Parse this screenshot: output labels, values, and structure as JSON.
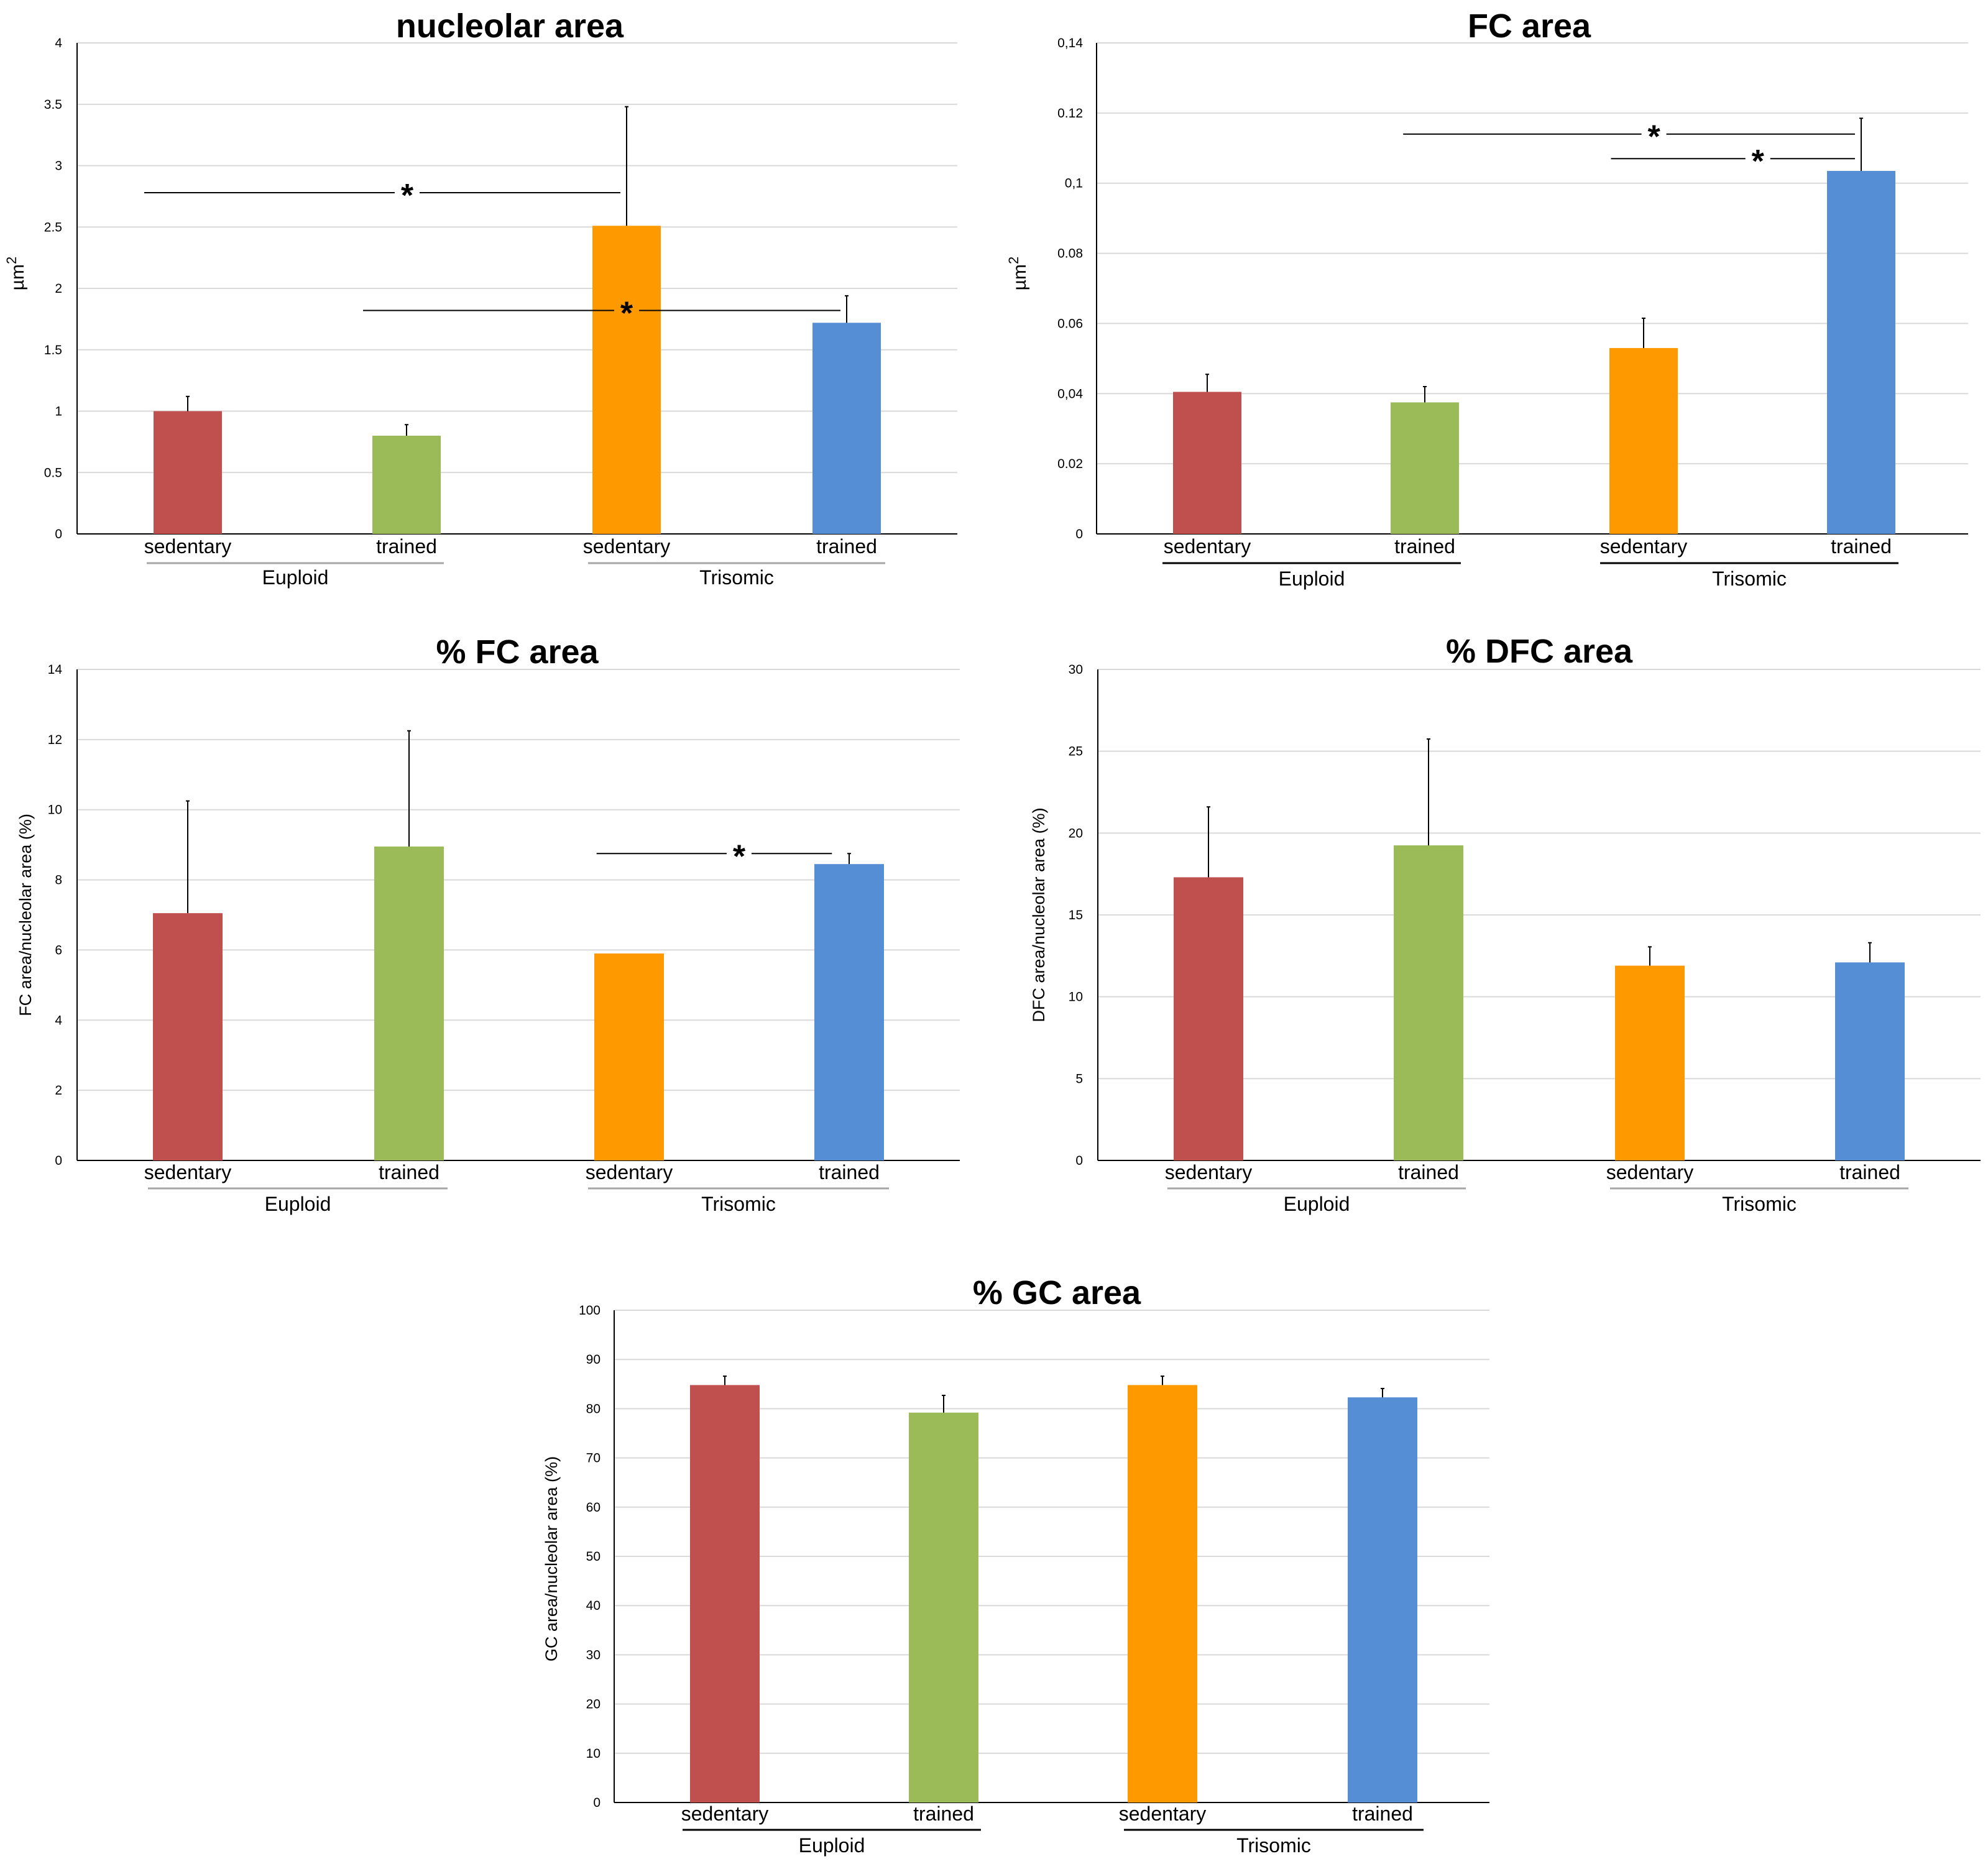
{
  "colors": {
    "sedentary_euploid": "#C0504D",
    "trained_euploid": "#9BBB59",
    "sedentary_trisomic": "#FF9900",
    "trained_trisomic": "#558ED5",
    "grid": "#D9D9D9",
    "axis": "#000000",
    "group_underline_gray": "#A6A6A6"
  },
  "chart_data": [
    {
      "id": "nucleolar",
      "type": "bar",
      "title": "nucleolar area",
      "ylabel": "µm",
      "ylabel_sup": "2",
      "ylim": [
        0,
        4
      ],
      "yticks": [
        0,
        0.5,
        1,
        1.5,
        2,
        2.5,
        3,
        3.5,
        4
      ],
      "ytick_labels": [
        "0",
        "0.5",
        "1",
        "1.5",
        "2",
        "2.5",
        "3",
        "3.5",
        "4"
      ],
      "categories": [
        "sedentary",
        "trained",
        "sedentary",
        "trained"
      ],
      "groups": [
        "Euploid",
        "Trisomic"
      ],
      "values": [
        1.0,
        0.8,
        2.51,
        1.72
      ],
      "errors": [
        0.12,
        0.09,
        0.97,
        0.22
      ],
      "significance": [
        {
          "from": 0,
          "to": 2,
          "y": 2.78,
          "label": "*"
        },
        {
          "from": 1,
          "to": 3,
          "y": 1.82,
          "label": "*"
        }
      ]
    },
    {
      "id": "fc",
      "type": "bar",
      "title": "FC area",
      "ylabel": "µm",
      "ylabel_sup": "2",
      "ylim": [
        0,
        0.14
      ],
      "yticks": [
        0,
        0.02,
        0.04,
        0.06,
        0.08,
        0.1,
        0.12,
        0.14
      ],
      "ytick_labels": [
        "0",
        "0.02",
        "0,04",
        "0.06",
        "0.08",
        "0,1",
        "0.12",
        "0,14"
      ],
      "categories": [
        "sedentary",
        "trained",
        "sedentary",
        "trained"
      ],
      "groups": [
        "Euploid",
        "Trisomic"
      ],
      "values": [
        0.0405,
        0.0375,
        0.053,
        0.1035
      ],
      "errors": [
        0.005,
        0.0045,
        0.0085,
        0.015
      ],
      "significance": [
        {
          "from": 1.1,
          "to": 3,
          "y": 0.114,
          "label": "*"
        },
        {
          "from": 2.05,
          "to": 3,
          "y": 0.107,
          "label": "*"
        }
      ]
    },
    {
      "id": "pct_fc",
      "type": "bar",
      "title": "% FC area",
      "ylabel": "FC area/nucleolar area (%)",
      "ylim": [
        0,
        14
      ],
      "yticks": [
        0,
        2,
        4,
        6,
        8,
        10,
        12,
        14
      ],
      "ytick_labels": [
        "0",
        "2",
        "4",
        "6",
        "8",
        "10",
        "12",
        "14"
      ],
      "categories": [
        "sedentary",
        "trained",
        "sedentary",
        "trained"
      ],
      "groups": [
        "Euploid",
        "Trisomic"
      ],
      "values": [
        7.05,
        8.95,
        5.9,
        8.45
      ],
      "errors": [
        3.2,
        3.3,
        0.0,
        0.3
      ],
      "significance": [
        {
          "from": 2.05,
          "to": 2.95,
          "y": 8.75,
          "label": "*"
        }
      ]
    },
    {
      "id": "pct_dfc",
      "type": "bar",
      "title": "% DFC area",
      "ylabel": "DFC area/nucleolar area (%)",
      "ylim": [
        0,
        30
      ],
      "yticks": [
        0,
        5,
        10,
        15,
        20,
        25,
        30
      ],
      "ytick_labels": [
        "0",
        "5",
        "10",
        "15",
        "20",
        "25",
        "30"
      ],
      "categories": [
        "sedentary",
        "trained",
        "sedentary",
        "trained"
      ],
      "groups": [
        "Euploid",
        "Trisomic"
      ],
      "values": [
        17.3,
        19.25,
        11.9,
        12.1
      ],
      "errors": [
        4.3,
        6.5,
        1.15,
        1.2
      ],
      "significance": []
    },
    {
      "id": "pct_gc",
      "type": "bar",
      "title": "% GC area",
      "ylabel": "GC area/nucleolar area (%)",
      "ylim": [
        0,
        100
      ],
      "yticks": [
        0,
        10,
        20,
        30,
        40,
        50,
        60,
        70,
        80,
        90,
        100
      ],
      "ytick_labels": [
        "0",
        "10",
        "20",
        "30",
        "40",
        "50",
        "60",
        "70",
        "80",
        "90",
        "100"
      ],
      "categories": [
        "sedentary",
        "trained",
        "sedentary",
        "trained"
      ],
      "groups": [
        "Euploid",
        "Trisomic"
      ],
      "values": [
        84.8,
        79.2,
        84.8,
        82.3
      ],
      "errors": [
        1.8,
        3.5,
        1.8,
        1.8
      ],
      "significance": []
    }
  ]
}
